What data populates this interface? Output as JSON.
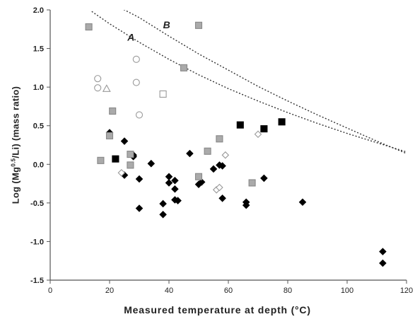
{
  "chart_data": {
    "type": "scatter",
    "title": "",
    "xlabel": "Measured temperature at depth (°C)",
    "ylabel": {
      "prefix": "Log (Mg",
      "superscript": "0.5",
      "suffix": "/Li) (mass ratio)"
    },
    "xlim": [
      0,
      120
    ],
    "ylim": [
      -1.5,
      2.0
    ],
    "xticks": [
      "0",
      "20",
      "40",
      "60",
      "80",
      "100",
      "120"
    ],
    "yticks": [
      "-1.5",
      "-1.0",
      "-0.5",
      "0.0",
      "0.5",
      "1.0",
      "1.5",
      "2.0"
    ],
    "grid": false,
    "legend": "none",
    "curves": [
      {
        "label": "A",
        "label_x": 26,
        "label_y": 1.6,
        "style": "dotted",
        "color": "#333333",
        "x": [
          14,
          20,
          30,
          40,
          50,
          60,
          70,
          80,
          90,
          100,
          110,
          120
        ],
        "y": [
          1.98,
          1.82,
          1.58,
          1.36,
          1.16,
          0.98,
          0.82,
          0.67,
          0.53,
          0.4,
          0.28,
          0.16
        ]
      },
      {
        "label": "B",
        "label_x": 38,
        "label_y": 1.76,
        "style": "dotted",
        "color": "#333333",
        "x": [
          20,
          30,
          40,
          50,
          60,
          70,
          80,
          90,
          100,
          110,
          120
        ],
        "y": [
          2.1,
          1.9,
          1.66,
          1.43,
          1.22,
          1.01,
          0.82,
          0.64,
          0.47,
          0.3,
          0.14
        ]
      }
    ],
    "series": [
      {
        "marker": "diamond",
        "fill": "#000000",
        "stroke": "#000000",
        "points": [
          [
            20,
            0.41
          ],
          [
            25,
            0.3
          ],
          [
            28,
            0.12
          ],
          [
            28,
            0.1
          ],
          [
            25,
            -0.14
          ],
          [
            30,
            -0.19
          ],
          [
            34,
            0.01
          ],
          [
            30,
            -0.57
          ],
          [
            38,
            -0.51
          ],
          [
            38,
            -0.65
          ],
          [
            40,
            -0.16
          ],
          [
            40,
            -0.24
          ],
          [
            42,
            -0.21
          ],
          [
            42,
            -0.32
          ],
          [
            42,
            -0.46
          ],
          [
            43,
            -0.47
          ],
          [
            47,
            0.14
          ],
          [
            50,
            -0.26
          ],
          [
            51,
            -0.23
          ],
          [
            55,
            -0.06
          ],
          [
            57,
            -0.01
          ],
          [
            58,
            -0.02
          ],
          [
            58,
            -0.44
          ],
          [
            66,
            -0.49
          ],
          [
            66,
            -0.53
          ],
          [
            72,
            -0.18
          ],
          [
            85,
            -0.49
          ],
          [
            112,
            -1.13
          ],
          [
            112,
            -1.28
          ]
        ]
      },
      {
        "marker": "square",
        "fill": "#000000",
        "stroke": "#000000",
        "points": [
          [
            22,
            0.07
          ],
          [
            64,
            0.51
          ],
          [
            72,
            0.46
          ],
          [
            78,
            0.55
          ]
        ]
      },
      {
        "marker": "square",
        "fill": "#aaaaaa",
        "stroke": "#888888",
        "points": [
          [
            13,
            1.78
          ],
          [
            50,
            1.8
          ],
          [
            45,
            1.25
          ],
          [
            21,
            0.69
          ],
          [
            20,
            0.37
          ],
          [
            27,
            0.13
          ],
          [
            27,
            -0.01
          ],
          [
            17,
            0.05
          ],
          [
            53,
            0.17
          ],
          [
            50,
            -0.16
          ],
          [
            57,
            0.33
          ],
          [
            68,
            -0.24
          ]
        ]
      },
      {
        "marker": "square",
        "fill": "#ffffff",
        "stroke": "#999999",
        "points": [
          [
            38,
            0.91
          ]
        ]
      },
      {
        "marker": "circle",
        "fill": "#ffffff",
        "stroke": "#999999",
        "points": [
          [
            29,
            1.36
          ],
          [
            29,
            1.06
          ],
          [
            30,
            0.64
          ],
          [
            16,
            1.11
          ],
          [
            16,
            0.99
          ]
        ]
      },
      {
        "marker": "triangle",
        "fill": "#ffffff",
        "stroke": "#999999",
        "points": [
          [
            19,
            0.98
          ]
        ]
      },
      {
        "marker": "diamond",
        "fill": "#ffffff",
        "stroke": "#999999",
        "points": [
          [
            24,
            -0.11
          ],
          [
            56,
            -0.33
          ],
          [
            57,
            -0.3
          ],
          [
            59,
            0.12
          ],
          [
            70,
            0.39
          ]
        ]
      }
    ]
  }
}
